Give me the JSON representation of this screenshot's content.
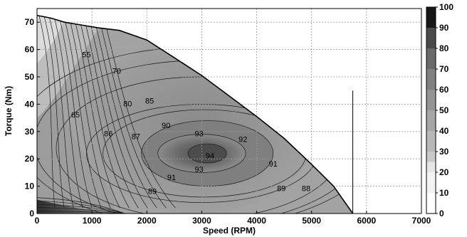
{
  "chart_data": {
    "type": "contour",
    "xlabel": "Speed (RPM)",
    "ylabel": "Torque (Nm)",
    "xlim": [
      0,
      7000
    ],
    "ylim": [
      0,
      75
    ],
    "x_ticks": [
      "0",
      "1000",
      "2000",
      "3000",
      "4000",
      "5000",
      "6000",
      "7000"
    ],
    "y_ticks": [
      "0",
      "10",
      "20",
      "30",
      "40",
      "50",
      "60",
      "70"
    ],
    "grid": true,
    "colorbar": {
      "min": 0,
      "max": 100,
      "ticks": [
        "0",
        "10",
        "20",
        "30",
        "40",
        "50",
        "60",
        "70",
        "80",
        "90",
        "100"
      ],
      "colormap": "gray-reversed"
    },
    "max_torque_envelope": [
      [
        0,
        72.5
      ],
      [
        250,
        71.5
      ],
      [
        500,
        70.0
      ],
      [
        800,
        69.0
      ],
      [
        1100,
        68.0
      ],
      [
        1500,
        67.0
      ],
      [
        2000,
        63.5
      ],
      [
        2500,
        57.0
      ],
      [
        3000,
        50.5
      ],
      [
        3500,
        43.0
      ],
      [
        4000,
        35.5
      ],
      [
        4500,
        27.5
      ],
      [
        5000,
        18.0
      ],
      [
        5400,
        10.0
      ],
      [
        5750,
        0
      ]
    ],
    "vertical_marker": {
      "x": 5750,
      "y_top": 45
    },
    "peak_efficiency": {
      "value": 94,
      "speed": 3000,
      "torque": 22
    },
    "contour_labels": [
      {
        "text": "55",
        "x": 900,
        "y": 58
      },
      {
        "text": "70",
        "x": 1450,
        "y": 52
      },
      {
        "text": "80",
        "x": 1650,
        "y": 40
      },
      {
        "text": "85",
        "x": 2050,
        "y": 41
      },
      {
        "text": "65",
        "x": 700,
        "y": 36
      },
      {
        "text": "90",
        "x": 2350,
        "y": 32
      },
      {
        "text": "86",
        "x": 1300,
        "y": 29
      },
      {
        "text": "87",
        "x": 1800,
        "y": 28
      },
      {
        "text": "93",
        "x": 2950,
        "y": 29
      },
      {
        "text": "92",
        "x": 3750,
        "y": 27
      },
      {
        "text": "94",
        "x": 3150,
        "y": 21
      },
      {
        "text": "93",
        "x": 2950,
        "y": 16
      },
      {
        "text": "91",
        "x": 2450,
        "y": 13
      },
      {
        "text": "91",
        "x": 4300,
        "y": 18
      },
      {
        "text": "89",
        "x": 2100,
        "y": 8
      },
      {
        "text": "89",
        "x": 4450,
        "y": 9
      },
      {
        "text": "88",
        "x": 4900,
        "y": 9
      }
    ]
  }
}
